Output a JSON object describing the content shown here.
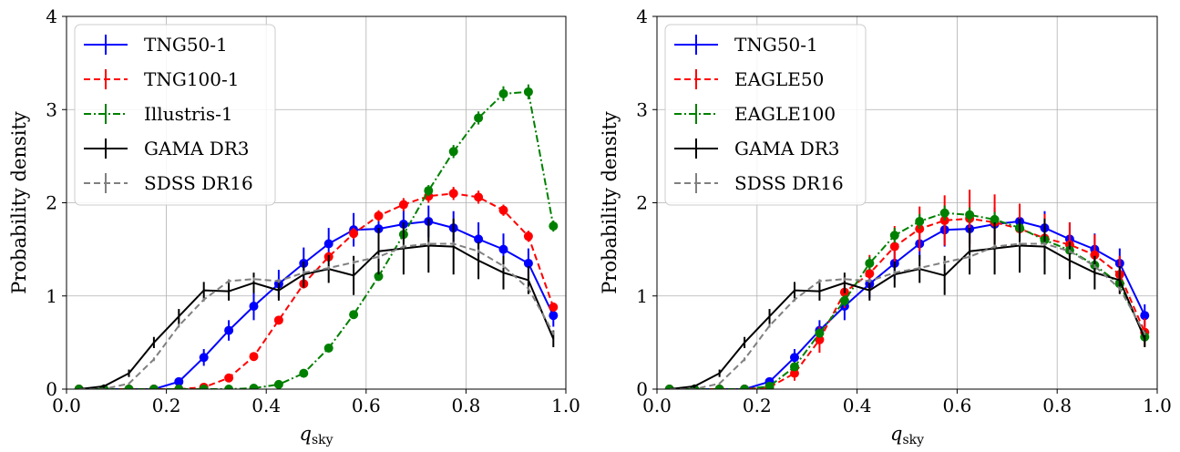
{
  "chart_data": [
    {
      "type": "line",
      "panel": "left",
      "xlabel_main": "q",
      "xlabel_sub": "sky",
      "ylabel": "Probability density",
      "xlim": [
        0.0,
        1.0
      ],
      "ylim": [
        0,
        4
      ],
      "xticks": [
        "0.0",
        "0.2",
        "0.4",
        "0.6",
        "0.8",
        "1.0"
      ],
      "yticks": [
        "0",
        "1",
        "2",
        "3",
        "4"
      ],
      "grid": true,
      "legend_position": "top-left",
      "x": [
        0.025,
        0.075,
        0.125,
        0.175,
        0.225,
        0.275,
        0.325,
        0.375,
        0.425,
        0.475,
        0.525,
        0.575,
        0.625,
        0.675,
        0.725,
        0.775,
        0.825,
        0.875,
        0.925,
        0.975
      ],
      "series": [
        {
          "name": "TNG50-1",
          "color": "#0000ff",
          "style": "solid",
          "markers": true,
          "values": [
            0,
            0,
            0,
            0,
            0.08,
            0.34,
            0.63,
            0.89,
            1.13,
            1.35,
            1.56,
            1.71,
            1.72,
            1.77,
            1.8,
            1.73,
            1.61,
            1.5,
            1.35,
            0.79
          ],
          "errors": [
            0,
            0,
            0,
            0,
            0.04,
            0.09,
            0.11,
            0.15,
            0.15,
            0.17,
            0.17,
            0.18,
            0.16,
            0.18,
            0.17,
            0.18,
            0.18,
            0.17,
            0.16,
            0.12
          ]
        },
        {
          "name": "TNG100-1",
          "color": "#ff0000",
          "style": "dashed",
          "markers": true,
          "values": [
            0,
            0,
            0,
            0,
            0,
            0.02,
            0.12,
            0.35,
            0.74,
            1.13,
            1.42,
            1.67,
            1.86,
            1.98,
            2.07,
            2.1,
            2.06,
            1.92,
            1.64,
            0.88
          ],
          "errors": [
            0,
            0,
            0,
            0,
            0,
            0.01,
            0.02,
            0.03,
            0.04,
            0.05,
            0.05,
            0.06,
            0.06,
            0.07,
            0.07,
            0.07,
            0.07,
            0.06,
            0.06,
            0.05
          ]
        },
        {
          "name": "Illustris-1",
          "color": "#008000",
          "style": "dashdot",
          "markers": true,
          "values": [
            0,
            0,
            0,
            0,
            0,
            0,
            0,
            0.01,
            0.05,
            0.17,
            0.44,
            0.8,
            1.21,
            1.66,
            2.13,
            2.55,
            2.91,
            3.17,
            3.19,
            1.75
          ],
          "errors": [
            0,
            0,
            0,
            0,
            0,
            0,
            0,
            0.01,
            0.01,
            0.02,
            0.03,
            0.04,
            0.05,
            0.06,
            0.06,
            0.07,
            0.07,
            0.08,
            0.08,
            0.06
          ]
        },
        {
          "name": "GAMA DR3",
          "color": "#000000",
          "style": "solid",
          "markers": false,
          "values": [
            0,
            0.03,
            0.17,
            0.5,
            0.78,
            1.06,
            1.05,
            1.14,
            1.06,
            1.23,
            1.29,
            1.22,
            1.48,
            1.51,
            1.54,
            1.53,
            1.38,
            1.25,
            1.17,
            0.54
          ],
          "errors": [
            0,
            0.02,
            0.04,
            0.06,
            0.08,
            0.09,
            0.1,
            0.11,
            0.11,
            0.14,
            0.15,
            0.21,
            0.25,
            0.28,
            0.29,
            0.3,
            0.2,
            0.18,
            0.15,
            0.09
          ]
        },
        {
          "name": "SDSS DR16",
          "color": "#808080",
          "style": "dashed",
          "markers": false,
          "values": [
            0,
            0,
            0.06,
            0.32,
            0.68,
            0.96,
            1.16,
            1.18,
            1.16,
            1.25,
            1.3,
            1.36,
            1.42,
            1.53,
            1.56,
            1.56,
            1.48,
            1.32,
            1.08,
            0.6
          ],
          "errors": [
            0,
            0,
            0.01,
            0.02,
            0.02,
            0.02,
            0.02,
            0.02,
            0.02,
            0.02,
            0.02,
            0.02,
            0.02,
            0.02,
            0.02,
            0.02,
            0.02,
            0.02,
            0.02,
            0.02
          ]
        }
      ]
    },
    {
      "type": "line",
      "panel": "right",
      "xlabel_main": "q",
      "xlabel_sub": "sky",
      "ylabel": "Probability density",
      "xlim": [
        0.0,
        1.0
      ],
      "ylim": [
        0,
        4
      ],
      "xticks": [
        "0.0",
        "0.2",
        "0.4",
        "0.6",
        "0.8",
        "1.0"
      ],
      "yticks": [
        "0",
        "1",
        "2",
        "3",
        "4"
      ],
      "grid": true,
      "legend_position": "top-left",
      "x": [
        0.025,
        0.075,
        0.125,
        0.175,
        0.225,
        0.275,
        0.325,
        0.375,
        0.425,
        0.475,
        0.525,
        0.575,
        0.625,
        0.675,
        0.725,
        0.775,
        0.825,
        0.875,
        0.925,
        0.975
      ],
      "series": [
        {
          "name": "TNG50-1",
          "color": "#0000ff",
          "style": "solid",
          "markers": true,
          "values": [
            0,
            0,
            0,
            0,
            0.08,
            0.34,
            0.63,
            0.89,
            1.13,
            1.35,
            1.56,
            1.71,
            1.72,
            1.77,
            1.8,
            1.73,
            1.61,
            1.5,
            1.35,
            0.79
          ],
          "errors": [
            0,
            0,
            0,
            0,
            0.04,
            0.09,
            0.11,
            0.15,
            0.15,
            0.17,
            0.17,
            0.18,
            0.16,
            0.18,
            0.17,
            0.18,
            0.18,
            0.17,
            0.16,
            0.12
          ]
        },
        {
          "name": "EAGLE50",
          "color": "#ff0000",
          "style": "dashed",
          "markers": true,
          "values": [
            0,
            0,
            0,
            0,
            0.02,
            0.17,
            0.53,
            1.04,
            1.24,
            1.53,
            1.72,
            1.81,
            1.83,
            1.79,
            1.72,
            1.62,
            1.55,
            1.44,
            1.23,
            0.61
          ],
          "errors": [
            0,
            0,
            0,
            0,
            0.02,
            0.08,
            0.14,
            0.17,
            0.2,
            0.22,
            0.24,
            0.27,
            0.31,
            0.3,
            0.27,
            0.26,
            0.24,
            0.22,
            0.2,
            0.15
          ]
        },
        {
          "name": "EAGLE100",
          "color": "#008000",
          "style": "dashdot",
          "markers": true,
          "values": [
            0,
            0,
            0,
            0,
            0.03,
            0.24,
            0.6,
            0.95,
            1.35,
            1.65,
            1.8,
            1.89,
            1.87,
            1.82,
            1.73,
            1.6,
            1.49,
            1.33,
            1.13,
            0.56
          ],
          "errors": [
            0,
            0,
            0,
            0,
            0.01,
            0.03,
            0.05,
            0.06,
            0.07,
            0.08,
            0.08,
            0.08,
            0.08,
            0.08,
            0.08,
            0.07,
            0.07,
            0.06,
            0.06,
            0.04
          ]
        },
        {
          "name": "GAMA DR3",
          "color": "#000000",
          "style": "solid",
          "markers": false,
          "values": [
            0,
            0.03,
            0.17,
            0.5,
            0.78,
            1.06,
            1.05,
            1.14,
            1.06,
            1.23,
            1.29,
            1.22,
            1.48,
            1.51,
            1.54,
            1.53,
            1.38,
            1.25,
            1.17,
            0.54
          ],
          "errors": [
            0,
            0.02,
            0.04,
            0.06,
            0.08,
            0.09,
            0.1,
            0.11,
            0.11,
            0.14,
            0.15,
            0.21,
            0.25,
            0.28,
            0.29,
            0.3,
            0.2,
            0.18,
            0.15,
            0.09
          ]
        },
        {
          "name": "SDSS DR16",
          "color": "#808080",
          "style": "dashed",
          "markers": false,
          "values": [
            0,
            0,
            0.06,
            0.32,
            0.68,
            0.96,
            1.16,
            1.18,
            1.16,
            1.25,
            1.3,
            1.36,
            1.42,
            1.53,
            1.56,
            1.56,
            1.48,
            1.32,
            1.08,
            0.6
          ],
          "errors": [
            0,
            0,
            0.01,
            0.02,
            0.02,
            0.02,
            0.02,
            0.02,
            0.02,
            0.02,
            0.02,
            0.02,
            0.02,
            0.02,
            0.02,
            0.02,
            0.02,
            0.02,
            0.02,
            0.02
          ]
        }
      ]
    }
  ]
}
